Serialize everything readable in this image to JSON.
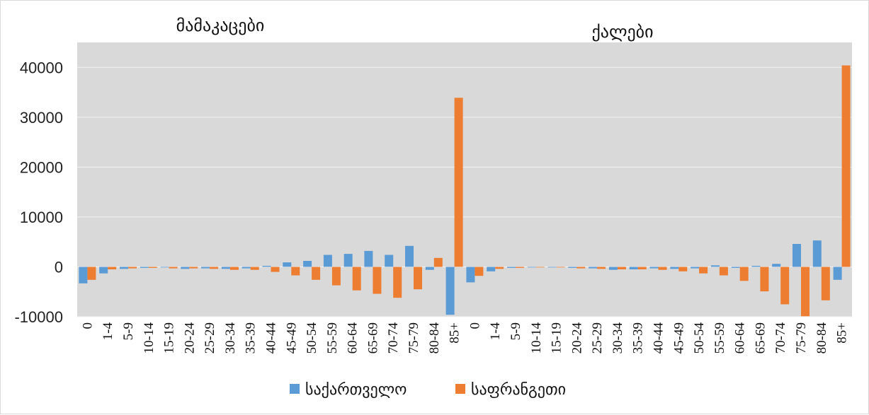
{
  "chart_data": {
    "type": "bar",
    "ylim": [
      -10000,
      45000
    ],
    "yticks": [
      -10000,
      0,
      10000,
      20000,
      30000,
      40000
    ],
    "grid": true,
    "legend_position": "bottom",
    "categories": [
      "0",
      "1-4",
      "5-9",
      "10-14",
      "15-19",
      "20-24",
      "25-29",
      "30-34",
      "35-39",
      "40-44",
      "45-49",
      "50-54",
      "55-59",
      "60-64",
      "65-69",
      "70-74",
      "75-79",
      "80-84",
      "85+",
      "0",
      "1-4",
      "5-9",
      "10-14",
      "15-19",
      "20-24",
      "25-29",
      "30-34",
      "35-39",
      "40-44",
      "45-49",
      "50-54",
      "55-59",
      "60-64",
      "65-69",
      "70-74",
      "75-79",
      "80-84",
      "85+"
    ],
    "panel_titles": [
      "მამაკაცები",
      "ქალები"
    ],
    "series": [
      {
        "name": "საქართველო",
        "color": "#5b9bd5",
        "values": [
          -3300,
          -1300,
          -400,
          -200,
          -100,
          -400,
          -300,
          -400,
          -300,
          200,
          900,
          1200,
          2400,
          2600,
          3200,
          2400,
          4200,
          -600,
          -9600,
          -3100,
          -900,
          -200,
          -100,
          -100,
          -200,
          -300,
          -600,
          -500,
          -300,
          -400,
          -300,
          300,
          -200,
          200,
          600,
          4600,
          5300,
          -2600
        ]
      },
      {
        "name": "საფრანგეთი",
        "color": "#ed7d31",
        "values": [
          -2600,
          -500,
          -300,
          -200,
          -300,
          -300,
          -400,
          -600,
          -600,
          -1000,
          -1700,
          -2600,
          -3700,
          -4700,
          -5400,
          -6200,
          -4500,
          1800,
          33900,
          -1800,
          -400,
          -200,
          -100,
          -100,
          -300,
          -400,
          -500,
          -500,
          -600,
          -900,
          -1300,
          -1700,
          -2800,
          -4900,
          -7500,
          -9900,
          -6700,
          40400
        ]
      }
    ]
  }
}
